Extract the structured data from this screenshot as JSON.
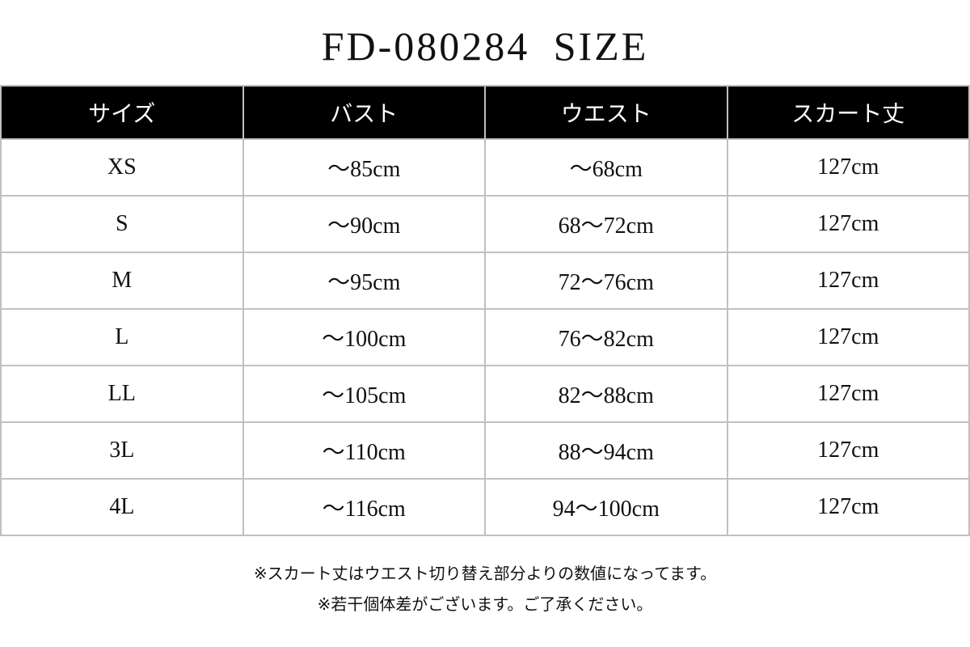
{
  "title": "FD-080284  SIZE",
  "table": {
    "headers": [
      "サイズ",
      "バスト",
      "ウエスト",
      "スカート丈"
    ],
    "rows": [
      [
        "XS",
        "～85cm",
        "～68cm",
        "127cm"
      ],
      [
        "S",
        "～90cm",
        "68～72cm",
        "127cm"
      ],
      [
        "M",
        "～95cm",
        "72～76cm",
        "127cm"
      ],
      [
        "L",
        "～100cm",
        "76～82cm",
        "127cm"
      ],
      [
        "LL",
        "～105cm",
        "82～88cm",
        "127cm"
      ],
      [
        "3L",
        "～110cm",
        "88～94cm",
        "127cm"
      ],
      [
        "4L",
        "～116cm",
        "94～100cm",
        "127cm"
      ]
    ]
  },
  "notes": [
    "※スカート丈はウエスト切り替え部分よりの数値になってます。",
    "※若干個体差がございます。ご了承ください。"
  ],
  "colors": {
    "header_bg": "#000000",
    "header_text": "#ffffff",
    "border": "#c0c0c0"
  }
}
